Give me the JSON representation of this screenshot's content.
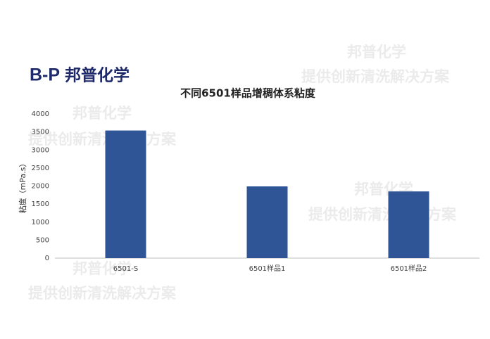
{
  "logo": {
    "mark": "B-P",
    "name": "邦普化学"
  },
  "watermarks": [
    {
      "brand": "邦普化学",
      "slogan": "提供创新清洗解决方案"
    },
    {
      "brand": "邦普化学",
      "slogan": "提供创新清洗解决方案"
    },
    {
      "brand": "邦普化学",
      "slogan": "提供创新清洗解决方案"
    },
    {
      "brand": "邦普化学",
      "slogan": "提供创新清洗解决方案"
    }
  ],
  "chart_data": {
    "type": "bar",
    "title": "不同6501样品增稠体系粘度",
    "y_label": "粘度（mPa.s）",
    "categories": [
      "6501-S",
      "6501样品1",
      "6501样品2"
    ],
    "values": [
      3540,
      1990,
      1850
    ],
    "color": "#2f5597",
    "ylim": [
      0,
      4000
    ],
    "yticks": [
      0,
      500,
      1000,
      1500,
      2000,
      2500,
      3000,
      3500,
      4000
    ],
    "grid": false
  }
}
